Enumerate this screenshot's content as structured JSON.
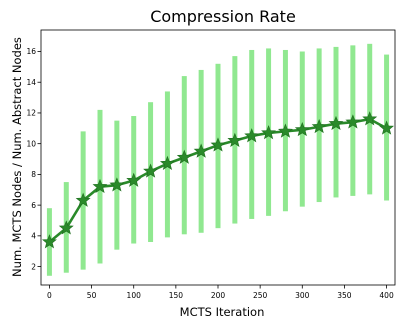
{
  "chart_data": {
    "type": "line",
    "title": "Compression Rate",
    "xlabel": "MCTS Iteration",
    "ylabel": "Num. MCTS Nodes / Num. Abstract Nodes",
    "xlim": [
      -10,
      410
    ],
    "ylim": [
      0.8,
      17.4
    ],
    "xticks": [
      0,
      50,
      100,
      150,
      200,
      250,
      300,
      350,
      400
    ],
    "yticks": [
      2,
      4,
      6,
      8,
      10,
      12,
      14,
      16
    ],
    "grid": false,
    "colors": {
      "line": "#2a8a2a",
      "marker": "#2a8a2a",
      "band": "#90e890"
    },
    "series": [
      {
        "marker": "star",
        "x": [
          0,
          20,
          40,
          60,
          80,
          100,
          120,
          140,
          160,
          180,
          200,
          220,
          240,
          260,
          280,
          300,
          320,
          340,
          360,
          380,
          400
        ],
        "y": [
          3.6,
          4.5,
          6.3,
          7.2,
          7.3,
          7.6,
          8.2,
          8.7,
          9.1,
          9.5,
          9.9,
          10.2,
          10.5,
          10.7,
          10.8,
          10.9,
          11.1,
          11.3,
          11.4,
          11.6,
          11.0
        ],
        "lower": [
          1.4,
          1.6,
          1.8,
          2.2,
          3.1,
          3.5,
          3.6,
          3.9,
          4.1,
          4.2,
          4.5,
          4.8,
          5.1,
          5.3,
          5.6,
          5.9,
          6.2,
          6.5,
          6.6,
          6.7,
          6.3
        ],
        "upper": [
          5.8,
          7.5,
          10.8,
          12.2,
          11.5,
          11.8,
          12.7,
          13.4,
          14.4,
          14.8,
          15.2,
          15.7,
          16.1,
          16.2,
          16.1,
          16.0,
          16.2,
          16.3,
          16.4,
          16.5,
          15.8
        ]
      }
    ]
  }
}
